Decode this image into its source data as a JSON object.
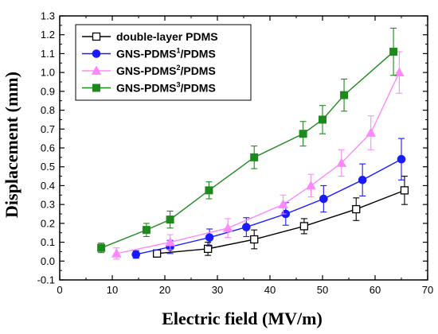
{
  "chart_data": {
    "type": "line",
    "xlabel": "Electric field (MV/m)",
    "ylabel": "Displacement (mm)",
    "xlim": [
      0,
      70
    ],
    "ylim": [
      -0.1,
      1.3
    ],
    "xticks": [
      0,
      10,
      20,
      30,
      40,
      50,
      60,
      70
    ],
    "yticks": [
      -0.1,
      0.0,
      0.1,
      0.2,
      0.3,
      0.4,
      0.5,
      0.6,
      0.7,
      0.8,
      0.9,
      1.0,
      1.1,
      1.2,
      1.3
    ],
    "ytick_labels": [
      "-0.1",
      "0.0",
      "0.1",
      "0.2",
      "0.3",
      "0.4",
      "0.5",
      "0.6",
      "0.7",
      "0.8",
      "0.9",
      "1.0",
      "1.1",
      "1.2",
      "1.3"
    ],
    "grid": false,
    "legend_position": "top-left",
    "series": [
      {
        "name_base": "double-layer PDMS",
        "name_sup": "",
        "name_tail": "",
        "color": "#000000",
        "marker": "open-square",
        "x": [
          18.5,
          28.2,
          37.0,
          46.5,
          56.4,
          65.6
        ],
        "y": [
          0.04,
          0.065,
          0.115,
          0.185,
          0.275,
          0.375
        ],
        "err": [
          0.01,
          0.035,
          0.05,
          0.04,
          0.06,
          0.075
        ]
      },
      {
        "name_base": "GNS-PDMS",
        "name_sup": "1",
        "name_tail": "/PDMS",
        "color": "#1a1aff",
        "marker": "circle",
        "x": [
          14.5,
          21.0,
          28.5,
          35.5,
          43.0,
          50.2,
          57.6,
          65.0
        ],
        "y": [
          0.035,
          0.075,
          0.125,
          0.18,
          0.25,
          0.33,
          0.43,
          0.54
        ],
        "err": [
          0.02,
          0.035,
          0.045,
          0.05,
          0.06,
          0.07,
          0.085,
          0.11
        ]
      },
      {
        "name_base": "GNS-PDMS",
        "name_sup": "2",
        "name_tail": "/PDMS",
        "color": "#ff88ff",
        "marker": "triangle",
        "x": [
          10.8,
          21.0,
          32.0,
          42.5,
          47.8,
          53.6,
          59.2,
          64.6
        ],
        "y": [
          0.04,
          0.1,
          0.175,
          0.3,
          0.4,
          0.52,
          0.68,
          1.0
        ],
        "err": [
          0.03,
          0.04,
          0.05,
          0.05,
          0.06,
          0.07,
          0.09,
          0.11
        ]
      },
      {
        "name_base": "GNS-PDMS",
        "name_sup": "3",
        "name_tail": "/PDMS",
        "color": "#1e8a1e",
        "marker": "filled-square",
        "x": [
          7.9,
          16.5,
          21.0,
          28.4,
          37.0,
          46.3,
          50.0,
          54.1,
          63.5
        ],
        "y": [
          0.07,
          0.165,
          0.22,
          0.375,
          0.55,
          0.675,
          0.75,
          0.88,
          1.11
        ],
        "err": [
          0.025,
          0.035,
          0.045,
          0.045,
          0.06,
          0.065,
          0.075,
          0.085,
          0.125
        ]
      }
    ]
  }
}
